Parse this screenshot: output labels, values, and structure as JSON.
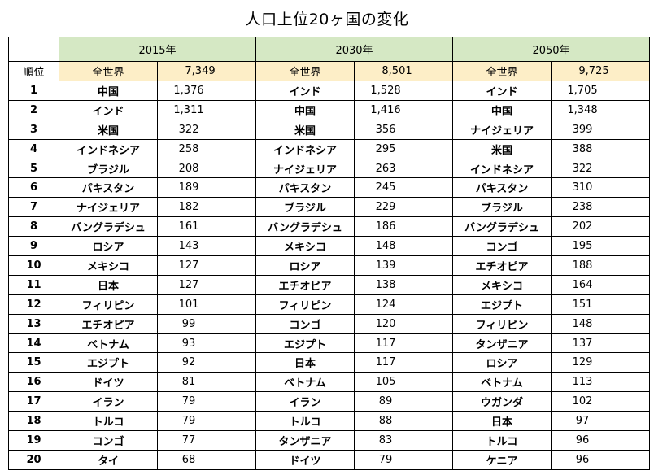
{
  "title": "人口上位20ヶ国の変化",
  "rank_header": "順位",
  "world_label": "全世界",
  "years": [
    {
      "year": "2015年",
      "world_total": "7,349"
    },
    {
      "year": "2030年",
      "world_total": "8,501"
    },
    {
      "year": "2050年",
      "world_total": "9,725"
    }
  ],
  "rows": [
    {
      "rank": "1",
      "c1": "中国",
      "v1": "1,376",
      "c2": "インド",
      "v2": "1,528",
      "c3": "インド",
      "v3": "1,705"
    },
    {
      "rank": "2",
      "c1": "インド",
      "v1": "1,311",
      "c2": "中国",
      "v2": "1,416",
      "c3": "中国",
      "v3": "1,348"
    },
    {
      "rank": "3",
      "c1": "米国",
      "v1": "322",
      "c2": "米国",
      "v2": "356",
      "c3": "ナイジェリア",
      "v3": "399"
    },
    {
      "rank": "4",
      "c1": "インドネシア",
      "v1": "258",
      "c2": "インドネシア",
      "v2": "295",
      "c3": "米国",
      "v3": "388"
    },
    {
      "rank": "5",
      "c1": "ブラジル",
      "v1": "208",
      "c2": "ナイジェリア",
      "v2": "263",
      "c3": "インドネシア",
      "v3": "322"
    },
    {
      "rank": "6",
      "c1": "パキスタン",
      "v1": "189",
      "c2": "パキスタン",
      "v2": "245",
      "c3": "パキスタン",
      "v3": "310"
    },
    {
      "rank": "7",
      "c1": "ナイジェリア",
      "v1": "182",
      "c2": "ブラジル",
      "v2": "229",
      "c3": "ブラジル",
      "v3": "238"
    },
    {
      "rank": "8",
      "c1": "バングラデシュ",
      "v1": "161",
      "c2": "バングラデシュ",
      "v2": "186",
      "c3": "バングラデシュ",
      "v3": "202"
    },
    {
      "rank": "9",
      "c1": "ロシア",
      "v1": "143",
      "c2": "メキシコ",
      "v2": "148",
      "c3": "コンゴ",
      "v3": "195"
    },
    {
      "rank": "10",
      "c1": "メキシコ",
      "v1": "127",
      "c2": "ロシア",
      "v2": "139",
      "c3": "エチオピア",
      "v3": "188"
    },
    {
      "rank": "11",
      "c1": "日本",
      "v1": "127",
      "c2": "エチオピア",
      "v2": "138",
      "c3": "メキシコ",
      "v3": "164"
    },
    {
      "rank": "12",
      "c1": "フィリピン",
      "v1": "101",
      "c2": "フィリピン",
      "v2": "124",
      "c3": "エジプト",
      "v3": "151"
    },
    {
      "rank": "13",
      "c1": "エチオピア",
      "v1": "99",
      "c2": "コンゴ",
      "v2": "120",
      "c3": "フィリピン",
      "v3": "148"
    },
    {
      "rank": "14",
      "c1": "ベトナム",
      "v1": "93",
      "c2": "エジプト",
      "v2": "117",
      "c3": "タンザニア",
      "v3": "137"
    },
    {
      "rank": "15",
      "c1": "エジプト",
      "v1": "92",
      "c2": "日本",
      "v2": "117",
      "c3": "ロシア",
      "v3": "129"
    },
    {
      "rank": "16",
      "c1": "ドイツ",
      "v1": "81",
      "c2": "ベトナム",
      "v2": "105",
      "c3": "ベトナム",
      "v3": "113"
    },
    {
      "rank": "17",
      "c1": "イラン",
      "v1": "79",
      "c2": "イラン",
      "v2": "89",
      "c3": "ウガンダ",
      "v3": "102"
    },
    {
      "rank": "18",
      "c1": "トルコ",
      "v1": "79",
      "c2": "トルコ",
      "v2": "88",
      "c3": "日本",
      "v3": "97"
    },
    {
      "rank": "19",
      "c1": "コンゴ",
      "v1": "77",
      "c2": "タンザニア",
      "v2": "83",
      "c3": "トルコ",
      "v3": "96"
    },
    {
      "rank": "20",
      "c1": "タイ",
      "v1": "68",
      "c2": "ドイツ",
      "v2": "79",
      "c3": "ケニア",
      "v3": "96"
    }
  ],
  "colors": {
    "year_header_bg": "#d5e8c4",
    "world_row_bg": "#fdeec7",
    "border": "#000000"
  }
}
